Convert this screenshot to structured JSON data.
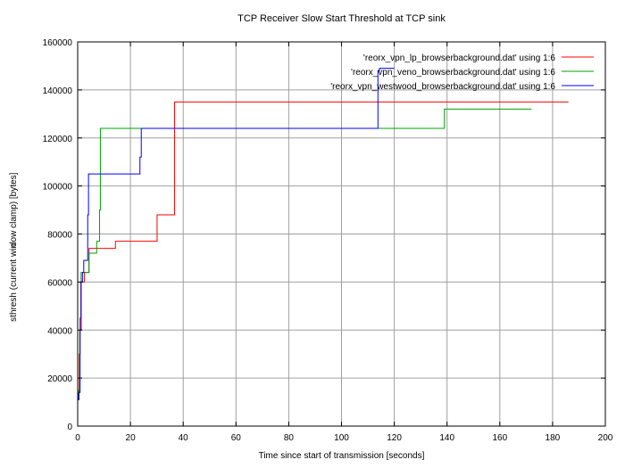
{
  "chart_data": {
    "type": "line",
    "title": "TCP Receiver Slow Start Threshold at TCP sink",
    "xlabel": "Time since start of transmission [seconds]",
    "ylabel_parts": [
      "sthresh (current win",
      "dow clamp) [bytes]"
    ],
    "xlim": [
      0,
      200
    ],
    "ylim": [
      0,
      160000
    ],
    "x_ticks": [
      0,
      20,
      40,
      60,
      80,
      100,
      120,
      140,
      160,
      180,
      200
    ],
    "y_ticks": [
      0,
      20000,
      40000,
      60000,
      80000,
      100000,
      120000,
      140000,
      160000
    ],
    "grid": true,
    "legend_position": "top-right",
    "series": [
      {
        "name": "'reorx_vpn_lp_browserbackground.dat' using 1:6",
        "color": "#ff0000",
        "step": true,
        "points": [
          [
            0.0,
            11000
          ],
          [
            0.3,
            14000
          ],
          [
            0.6,
            30000
          ],
          [
            0.9,
            45000
          ],
          [
            1.2,
            60000
          ],
          [
            2.0,
            60000
          ],
          [
            2.5,
            64000
          ],
          [
            4.0,
            64000
          ],
          [
            4.3,
            74000
          ],
          [
            13.5,
            74000
          ],
          [
            14.3,
            77000
          ],
          [
            30.0,
            77000
          ],
          [
            30.1,
            88000
          ],
          [
            36.0,
            88000
          ],
          [
            36.7,
            135000
          ],
          [
            186.0,
            135000
          ]
        ]
      },
      {
        "name": "'reorx_vpn_veno_browserbackground.dat' using 1:6",
        "color": "#00a000",
        "step": true,
        "points": [
          [
            0.0,
            11000
          ],
          [
            0.4,
            15000
          ],
          [
            0.8,
            40000
          ],
          [
            1.3,
            64000
          ],
          [
            4.0,
            64000
          ],
          [
            4.3,
            72000
          ],
          [
            6.8,
            72000
          ],
          [
            7.2,
            77000
          ],
          [
            8.0,
            77000
          ],
          [
            8.3,
            90000
          ],
          [
            8.6,
            124000
          ],
          [
            138.5,
            124000
          ],
          [
            139.0,
            132000
          ],
          [
            172.0,
            132000
          ]
        ]
      },
      {
        "name": "'reorx_vpn_westwood_browserbackground.dat' using 1:6",
        "color": "#0000ff",
        "step": true,
        "points": [
          [
            0.0,
            11000
          ],
          [
            0.5,
            14000
          ],
          [
            0.9,
            40000
          ],
          [
            1.3,
            60000
          ],
          [
            1.8,
            64000
          ],
          [
            2.3,
            69000
          ],
          [
            3.4,
            69000
          ],
          [
            3.8,
            88000
          ],
          [
            4.1,
            105000
          ],
          [
            23.2,
            105000
          ],
          [
            23.6,
            112000
          ],
          [
            24.1,
            124000
          ],
          [
            113.4,
            124000
          ],
          [
            113.8,
            148000
          ],
          [
            114.4,
            149000
          ],
          [
            120.0,
            149000
          ]
        ]
      }
    ]
  }
}
